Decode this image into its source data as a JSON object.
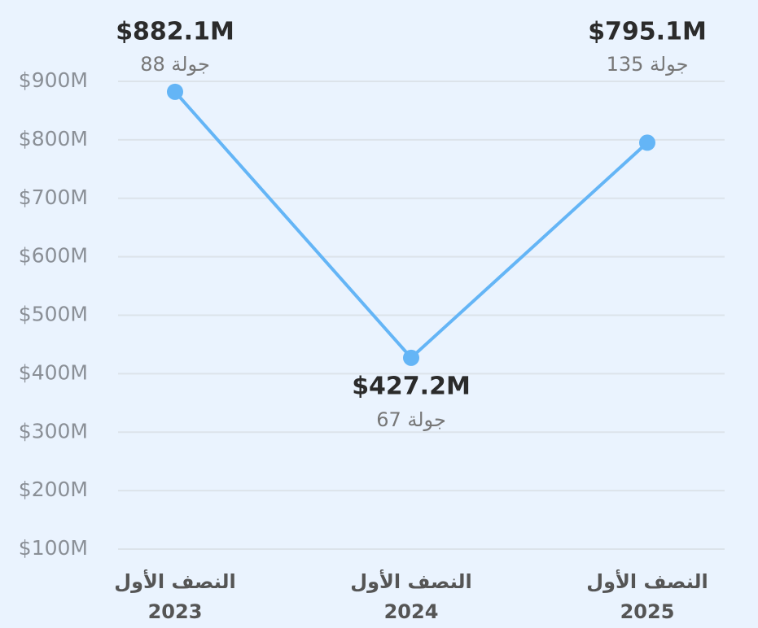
{
  "chart_data": {
    "type": "line",
    "categories": [
      [
        "النصف الأول",
        "2023"
      ],
      [
        "النصف الأول",
        "2024"
      ],
      [
        "النصف الأول",
        "2025"
      ]
    ],
    "series": [
      {
        "color": "#64b5f6",
        "values": [
          882.1,
          427.2,
          795.1
        ],
        "value_labels": [
          "$882.1M",
          "$427.2M",
          "$795.1M"
        ],
        "rounds_labels": [
          "88 جولة",
          "67 جولة",
          "135 جولة"
        ]
      }
    ],
    "ylim": [
      100,
      900
    ],
    "yticks": [
      {
        "value": 100,
        "label": "$100M"
      },
      {
        "value": 200,
        "label": "$200M"
      },
      {
        "value": 300,
        "label": "$300M"
      },
      {
        "value": 400,
        "label": "$400M"
      },
      {
        "value": 500,
        "label": "$500M"
      },
      {
        "value": 600,
        "label": "$600M"
      },
      {
        "value": 700,
        "label": "$700M"
      },
      {
        "value": 800,
        "label": "$800M"
      },
      {
        "value": 900,
        "label": "$900M"
      }
    ],
    "grid": true
  }
}
